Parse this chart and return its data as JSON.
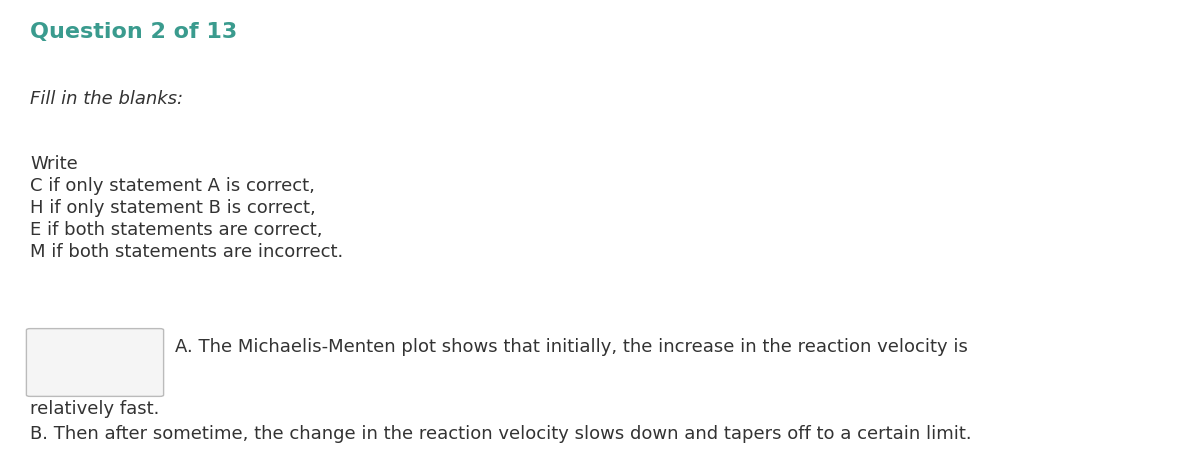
{
  "title": "Question 2 of 13",
  "title_color": "#3a9b8e",
  "title_fontsize": 16,
  "subtitle": "Fill in the blanks:",
  "subtitle_fontsize": 13,
  "body_lines": [
    "Write",
    "C if only statement A is correct,",
    "H if only statement B is correct,",
    "E if both statements are correct,",
    "M if both statements are incorrect."
  ],
  "body_fontsize": 13,
  "body_color": "#333333",
  "statement_a_inline": "A. The Michaelis-Menten plot shows that initially, the increase in the reaction velocity is",
  "statement_a_cont": "relatively fast.",
  "statement_b": "B. Then after sometime, the change in the reaction velocity slows down and tapers off to a certain limit.",
  "statement_fontsize": 13,
  "background_color": "#ffffff",
  "fig_width": 12.0,
  "fig_height": 4.63,
  "dpi": 100
}
